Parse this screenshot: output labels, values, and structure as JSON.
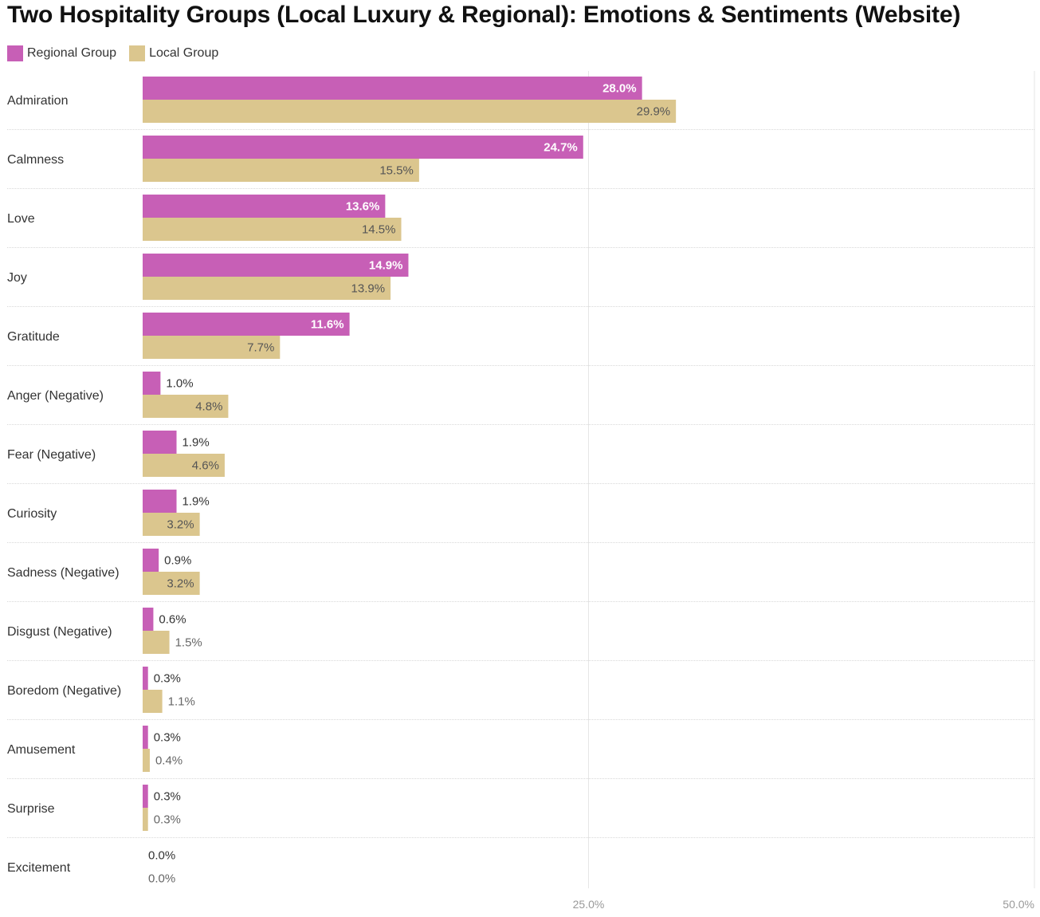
{
  "chart_data": {
    "type": "bar",
    "orientation": "horizontal",
    "title": "Two Hospitality Groups (Local Luxury & Regional): Emotions & Sentiments (Website)",
    "categories": [
      "Admiration",
      "Calmness",
      "Love",
      "Joy",
      "Gratitude",
      "Anger (Negative)",
      "Fear (Negative)",
      "Curiosity",
      "Sadness (Negative)",
      "Disgust (Negative)",
      "Boredom (Negative)",
      "Amusement",
      "Surprise",
      "Excitement"
    ],
    "series": [
      {
        "name": "Regional Group",
        "color": "#c75fb6",
        "values": [
          28.0,
          24.7,
          13.6,
          14.9,
          11.6,
          1.0,
          1.9,
          1.9,
          0.9,
          0.6,
          0.3,
          0.3,
          0.3,
          0.0
        ],
        "labels": [
          "28.0%",
          "24.7%",
          "13.6%",
          "14.9%",
          "11.6%",
          "1.0%",
          "1.9%",
          "1.9%",
          "0.9%",
          "0.6%",
          "0.3%",
          "0.3%",
          "0.3%",
          "0.0%"
        ]
      },
      {
        "name": "Local Group",
        "color": "#dbc68e",
        "values": [
          29.9,
          15.5,
          14.5,
          13.9,
          7.7,
          4.8,
          4.6,
          3.2,
          3.2,
          1.5,
          1.1,
          0.4,
          0.3,
          0.0
        ],
        "labels": [
          "29.9%",
          "15.5%",
          "14.5%",
          "13.9%",
          "7.7%",
          "4.8%",
          "4.6%",
          "3.2%",
          "3.2%",
          "1.5%",
          "1.1%",
          "0.4%",
          "0.3%",
          "0.0%"
        ]
      }
    ],
    "xlim": [
      0,
      50
    ],
    "x_ticks": [
      25,
      50
    ],
    "x_tick_labels": [
      "25.0%",
      "50.0%"
    ],
    "xlabel": "",
    "ylabel": "",
    "legend_position": "top-left",
    "grid": true
  }
}
